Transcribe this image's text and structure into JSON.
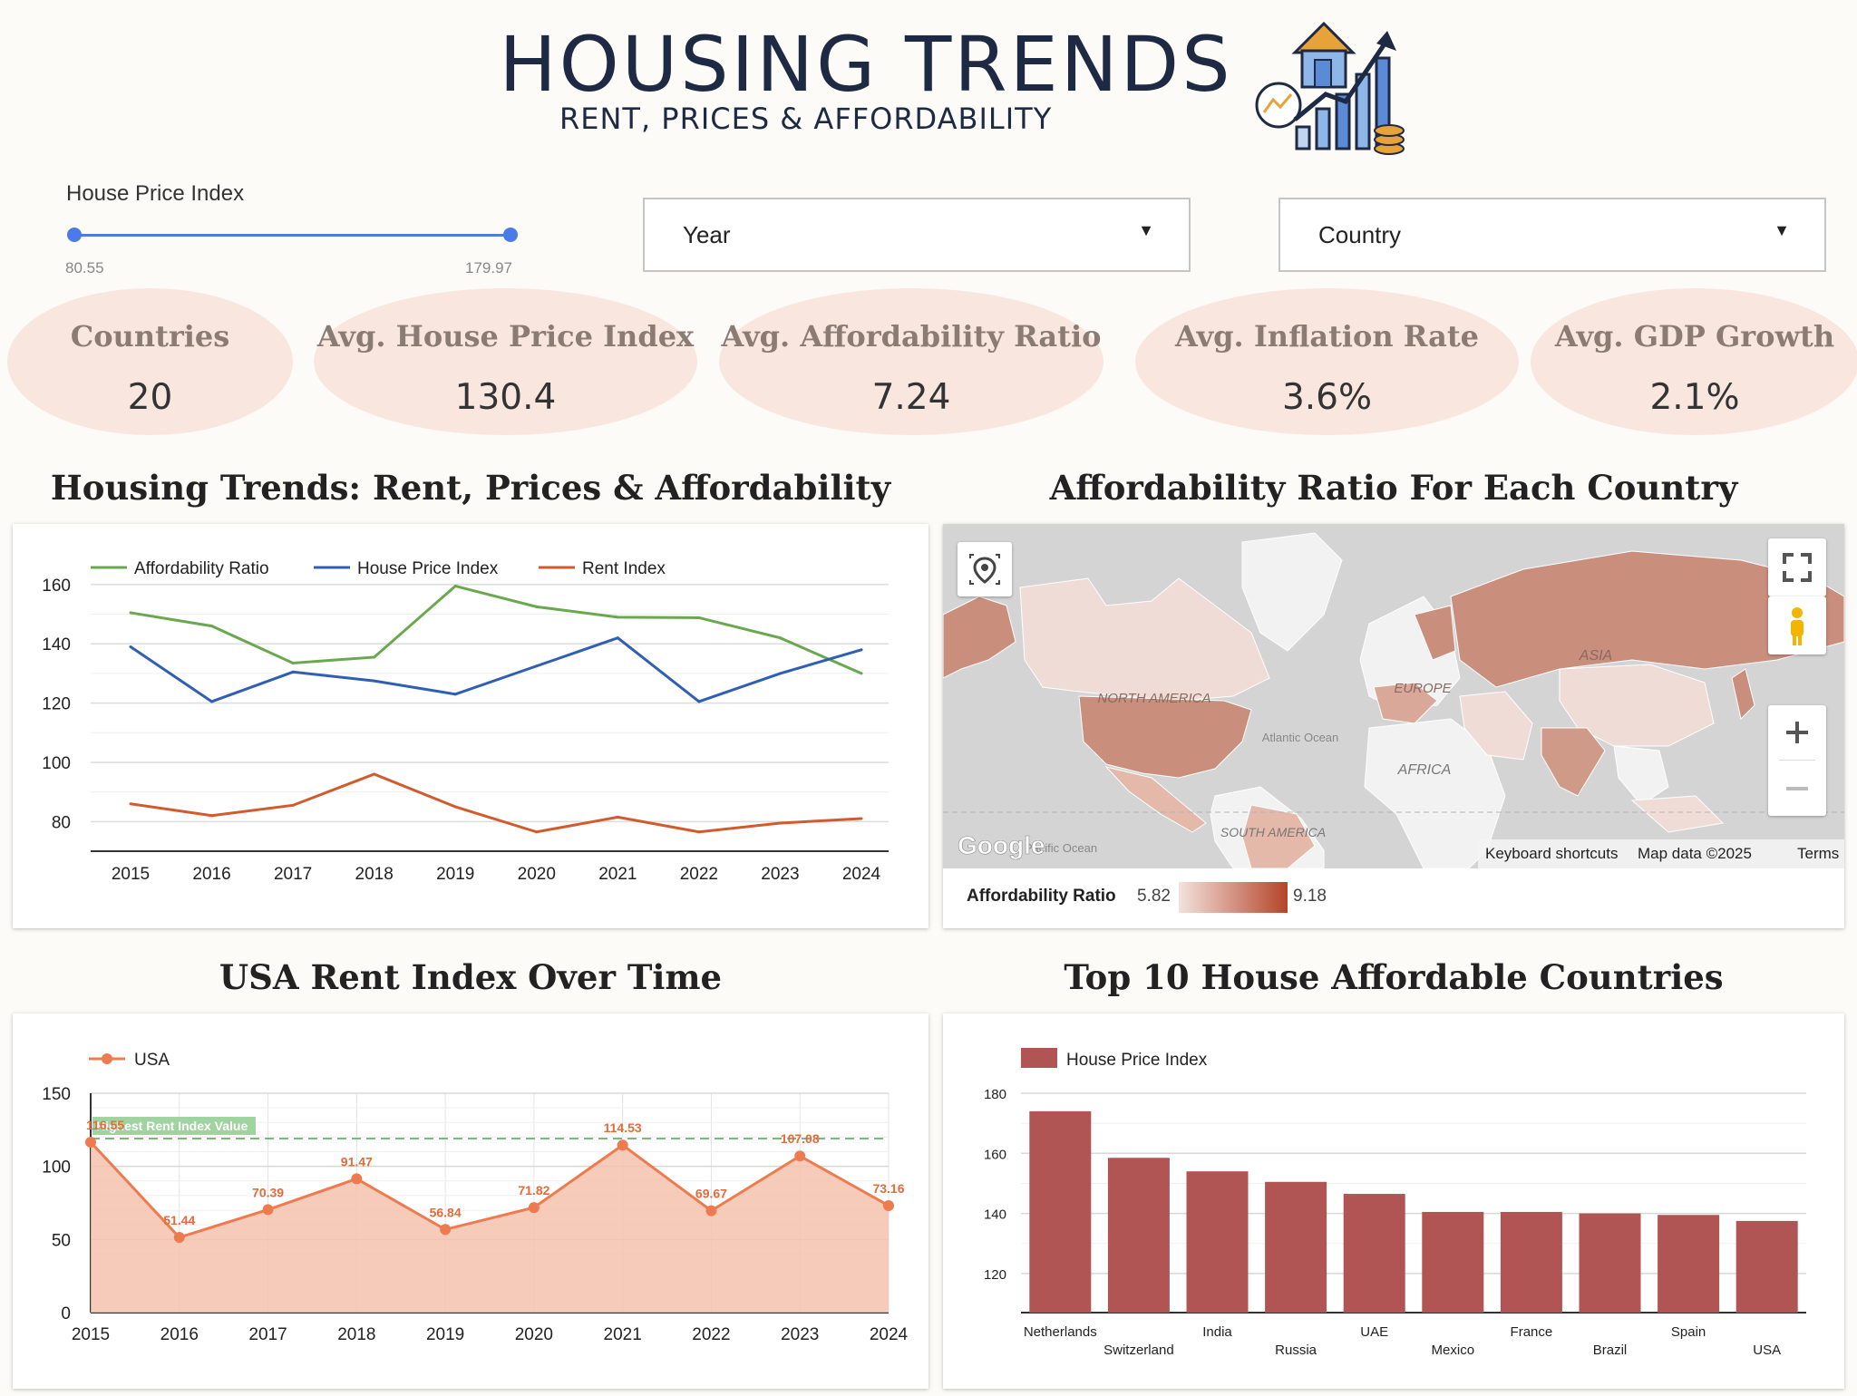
{
  "header": {
    "title": "HOUSING TRENDS",
    "subtitle": "RENT, PRICES & AFFORDABILITY"
  },
  "filters": {
    "slider_label": "House Price Index",
    "slider_min": "80.55",
    "slider_max": "179.97",
    "year_label": "Year",
    "country_label": "Country"
  },
  "kpis": [
    {
      "label": "Countries",
      "value": "20"
    },
    {
      "label": "Avg. House Price Index",
      "value": "130.4"
    },
    {
      "label": "Avg. Affordability Ratio",
      "value": "7.24"
    },
    {
      "label": "Avg. Inflation Rate",
      "value": "3.6%"
    },
    {
      "label": "Avg. GDP Growth",
      "value": "2.1%"
    }
  ],
  "sections": {
    "trends_title": "Housing Trends: Rent, Prices & Affordability",
    "map_title": "Affordability Ratio For Each Country",
    "usa_title": "USA Rent Index Over Time",
    "top10_title": "Top 10 House Affordable Countries"
  },
  "map": {
    "region_labels": [
      "NORTH AMERICA",
      "EUROPE",
      "ASIA",
      "AFRICA",
      "SOUTH AMERICA",
      "Atlantic Ocean",
      "Pacific Ocean"
    ],
    "keyboard_shortcuts": "Keyboard shortcuts",
    "map_data": "Map data ©2025",
    "terms": "Terms",
    "google": "Google",
    "legend_label": "Affordability Ratio",
    "legend_min": "5.82",
    "legend_max": "9.18",
    "colors": {
      "low": "#f3e2dc",
      "high": "#b5442a",
      "land": "#f2f2f2",
      "water": "#d4d4d4"
    }
  },
  "chart_data": [
    {
      "type": "line",
      "x": [
        "2015",
        "2016",
        "2017",
        "2018",
        "2019",
        "2020",
        "2021",
        "2022",
        "2023",
        "2024"
      ],
      "series": [
        {
          "name": "Affordability Ratio",
          "color": "#6aa84f",
          "values": [
            150.5,
            146,
            133.5,
            135.5,
            159.5,
            152.5,
            149,
            148.8,
            142,
            130
          ]
        },
        {
          "name": "House Price Index",
          "color": "#2f5fb3",
          "values": [
            139,
            120.5,
            130.5,
            127.5,
            123,
            132.5,
            142,
            120.5,
            130,
            138
          ]
        },
        {
          "name": "Rent Index",
          "color": "#d25b2e",
          "values": [
            86,
            82,
            85.5,
            96,
            85,
            76.5,
            81.5,
            76.5,
            79.5,
            81
          ]
        }
      ],
      "yticks": [
        80,
        100,
        120,
        140,
        160
      ],
      "ylim": [
        70,
        167
      ]
    },
    {
      "type": "area",
      "x": [
        "2015",
        "2016",
        "2017",
        "2018",
        "2019",
        "2020",
        "2021",
        "2022",
        "2023",
        "2024"
      ],
      "series": [
        {
          "name": "USA",
          "color": "#ee7b4f",
          "values": [
            116.55,
            51.44,
            70.39,
            91.47,
            56.84,
            71.82,
            114.53,
            69.67,
            107.08,
            73.16
          ]
        }
      ],
      "data_labels": [
        "116.55",
        "51.44",
        "70.39",
        "91.47",
        "56.84",
        "71.82",
        "114.53",
        "69.67",
        "107.08",
        "73.16"
      ],
      "reference_line": {
        "label": "Highest Rent Index Value",
        "value": 119
      },
      "yticks": [
        0,
        50,
        100,
        150
      ],
      "ylim": [
        0,
        150
      ]
    },
    {
      "type": "bar",
      "categories": [
        "Netherlands",
        "Switzerland",
        "India",
        "Russia",
        "UAE",
        "Mexico",
        "France",
        "Brazil",
        "Spain",
        "USA"
      ],
      "series": [
        {
          "name": "House Price Index",
          "color": "#b05454",
          "values": [
            174,
            158.5,
            154,
            150.5,
            146.5,
            140.5,
            140.5,
            140,
            139.5,
            137.5
          ]
        }
      ],
      "yticks": [
        120,
        140,
        160,
        180
      ],
      "ylim": [
        107,
        180
      ]
    }
  ]
}
